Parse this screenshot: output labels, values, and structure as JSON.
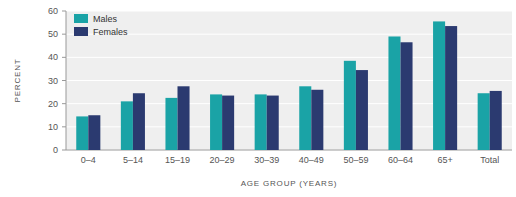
{
  "chart_data": {
    "type": "bar",
    "x_label": "AGE GROUP (YEARS)",
    "y_label": "PERCENT",
    "categories": [
      "0–4",
      "5–14",
      "15–19",
      "20–29",
      "30–39",
      "40–49",
      "50–59",
      "60–64",
      "65+",
      "Total"
    ],
    "series": [
      {
        "name": "Males",
        "color": "#1aa3a6",
        "values": [
          14.5,
          21,
          22.5,
          24,
          24,
          27.5,
          38.5,
          49,
          55.5,
          24.5
        ]
      },
      {
        "name": "Females",
        "color": "#2b3a70",
        "values": [
          15,
          24.5,
          27.5,
          23.5,
          23.5,
          26,
          34.5,
          46.5,
          53.5,
          25.5
        ]
      }
    ],
    "ylim": [
      0,
      60
    ],
    "yticks": [
      0,
      10,
      20,
      30,
      40,
      50,
      60
    ],
    "grid": true,
    "legend": "upper left"
  }
}
